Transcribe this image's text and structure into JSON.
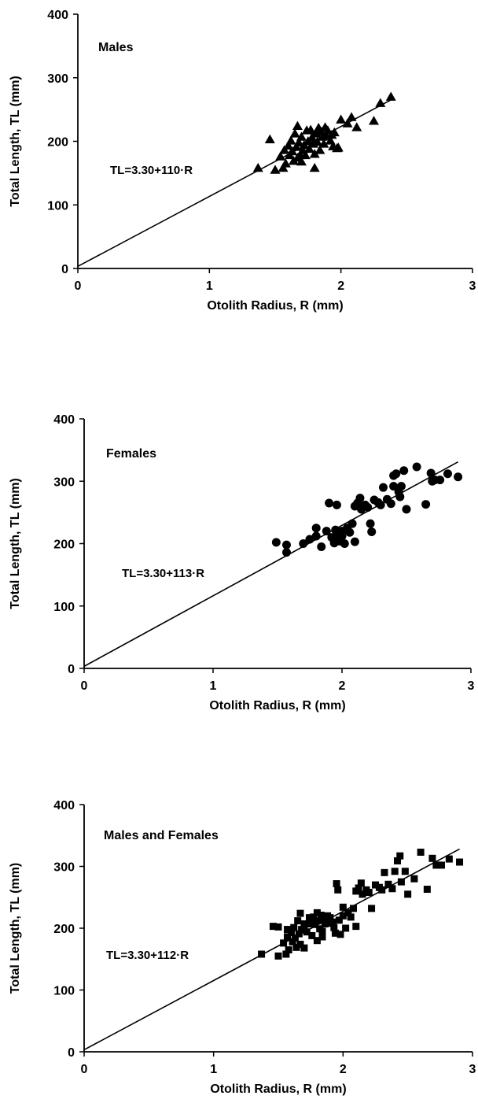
{
  "chart_data": [
    {
      "type": "scatter",
      "panel_label": "Males",
      "xlabel": "Otolith Radius, R (mm)",
      "ylabel": "Total Length, TL (mm)",
      "xlim": [
        0,
        3
      ],
      "ylim": [
        0,
        400
      ],
      "xticks": [
        "0",
        "1",
        "2",
        "3"
      ],
      "yticks": [
        "0",
        "100",
        "200",
        "300",
        "400"
      ],
      "equation": "TL=3.30+110·R",
      "marker": "triangle",
      "fit": {
        "intercept": 3.3,
        "slope": 110,
        "x_range": [
          0,
          2.4
        ]
      },
      "points": [
        [
          1.37,
          158
        ],
        [
          1.46,
          203
        ],
        [
          1.5,
          155
        ],
        [
          1.54,
          176
        ],
        [
          1.56,
          158
        ],
        [
          1.57,
          186
        ],
        [
          1.58,
          165
        ],
        [
          1.6,
          193
        ],
        [
          1.61,
          178
        ],
        [
          1.62,
          201
        ],
        [
          1.63,
          184
        ],
        [
          1.64,
          169
        ],
        [
          1.65,
          212
        ],
        [
          1.66,
          191
        ],
        [
          1.67,
          224
        ],
        [
          1.67,
          174
        ],
        [
          1.68,
          198
        ],
        [
          1.69,
          178
        ],
        [
          1.7,
          207
        ],
        [
          1.7,
          168
        ],
        [
          1.71,
          186
        ],
        [
          1.72,
          194
        ],
        [
          1.73,
          178
        ],
        [
          1.74,
          217
        ],
        [
          1.75,
          200
        ],
        [
          1.76,
          188
        ],
        [
          1.77,
          218
        ],
        [
          1.78,
          206
        ],
        [
          1.79,
          196
        ],
        [
          1.8,
          180
        ],
        [
          1.8,
          158
        ],
        [
          1.81,
          212
        ],
        [
          1.82,
          199
        ],
        [
          1.83,
          221
        ],
        [
          1.84,
          186
        ],
        [
          1.85,
          215
        ],
        [
          1.86,
          207
        ],
        [
          1.87,
          196
        ],
        [
          1.88,
          222
        ],
        [
          1.89,
          208
        ],
        [
          1.9,
          217
        ],
        [
          1.92,
          201
        ],
        [
          1.93,
          210
        ],
        [
          1.94,
          192
        ],
        [
          1.95,
          214
        ],
        [
          1.97,
          189
        ],
        [
          1.98,
          190
        ],
        [
          2.0,
          234
        ],
        [
          2.05,
          228
        ],
        [
          2.08,
          238
        ],
        [
          2.12,
          222
        ],
        [
          2.25,
          232
        ],
        [
          2.3,
          260
        ],
        [
          2.38,
          270
        ]
      ]
    },
    {
      "type": "scatter",
      "panel_label": "Females",
      "xlabel": "Otolith Radius, R (mm)",
      "ylabel": "Total Length, TL (mm)",
      "xlim": [
        0,
        3
      ],
      "ylim": [
        0,
        400
      ],
      "xticks": [
        "0",
        "1",
        "2",
        "3"
      ],
      "yticks": [
        "0",
        "100",
        "200",
        "300",
        "400"
      ],
      "equation": "TL=3.30+113·R",
      "marker": "circle",
      "fit": {
        "intercept": 3.3,
        "slope": 113,
        "x_range": [
          0,
          2.9
        ]
      },
      "points": [
        [
          1.49,
          202
        ],
        [
          1.57,
          198
        ],
        [
          1.57,
          186
        ],
        [
          1.7,
          200
        ],
        [
          1.75,
          207
        ],
        [
          1.8,
          212
        ],
        [
          1.8,
          225
        ],
        [
          1.84,
          195
        ],
        [
          1.88,
          220
        ],
        [
          1.9,
          265
        ],
        [
          1.92,
          210
        ],
        [
          1.94,
          201
        ],
        [
          1.95,
          222
        ],
        [
          1.96,
          262
        ],
        [
          1.97,
          213
        ],
        [
          1.98,
          204
        ],
        [
          2.0,
          220
        ],
        [
          2.0,
          212
        ],
        [
          2.02,
          200
        ],
        [
          2.04,
          225
        ],
        [
          2.06,
          218
        ],
        [
          2.08,
          232
        ],
        [
          2.1,
          203
        ],
        [
          2.1,
          260
        ],
        [
          2.12,
          265
        ],
        [
          2.14,
          273
        ],
        [
          2.15,
          255
        ],
        [
          2.18,
          262
        ],
        [
          2.2,
          258
        ],
        [
          2.22,
          232
        ],
        [
          2.23,
          219
        ],
        [
          2.25,
          270
        ],
        [
          2.28,
          266
        ],
        [
          2.3,
          262
        ],
        [
          2.32,
          290
        ],
        [
          2.35,
          271
        ],
        [
          2.38,
          264
        ],
        [
          2.4,
          292
        ],
        [
          2.4,
          309
        ],
        [
          2.42,
          312
        ],
        [
          2.44,
          283
        ],
        [
          2.45,
          275
        ],
        [
          2.46,
          292
        ],
        [
          2.48,
          317
        ],
        [
          2.5,
          255
        ],
        [
          2.58,
          323
        ],
        [
          2.65,
          263
        ],
        [
          2.69,
          313
        ],
        [
          2.7,
          300
        ],
        [
          2.72,
          302
        ],
        [
          2.76,
          302
        ],
        [
          2.82,
          312
        ],
        [
          2.9,
          307
        ]
      ]
    },
    {
      "type": "scatter",
      "panel_label": "Males and Females",
      "xlabel": "Otolith Radius, R (mm)",
      "ylabel": "Total Length, TL (mm)",
      "xlim": [
        0,
        3
      ],
      "ylim": [
        0,
        400
      ],
      "xticks": [
        "0",
        "1",
        "2",
        "3"
      ],
      "yticks": [
        "0",
        "100",
        "200",
        "300",
        "400"
      ],
      "equation": "TL=3.30+112·R",
      "marker": "square",
      "fit": {
        "intercept": 3.3,
        "slope": 112,
        "x_range": [
          0,
          2.9
        ]
      },
      "points": [
        [
          1.37,
          158
        ],
        [
          1.46,
          203
        ],
        [
          1.5,
          155
        ],
        [
          1.5,
          202
        ],
        [
          1.54,
          176
        ],
        [
          1.56,
          158
        ],
        [
          1.57,
          198
        ],
        [
          1.57,
          186
        ],
        [
          1.58,
          165
        ],
        [
          1.6,
          193
        ],
        [
          1.61,
          178
        ],
        [
          1.62,
          201
        ],
        [
          1.63,
          184
        ],
        [
          1.64,
          169
        ],
        [
          1.65,
          212
        ],
        [
          1.66,
          191
        ],
        [
          1.67,
          224
        ],
        [
          1.67,
          174
        ],
        [
          1.68,
          198
        ],
        [
          1.7,
          200
        ],
        [
          1.7,
          207
        ],
        [
          1.7,
          168
        ],
        [
          1.72,
          194
        ],
        [
          1.74,
          217
        ],
        [
          1.75,
          207
        ],
        [
          1.76,
          188
        ],
        [
          1.77,
          218
        ],
        [
          1.78,
          206
        ],
        [
          1.8,
          212
        ],
        [
          1.8,
          225
        ],
        [
          1.8,
          180
        ],
        [
          1.82,
          199
        ],
        [
          1.83,
          221
        ],
        [
          1.84,
          195
        ],
        [
          1.84,
          186
        ],
        [
          1.85,
          215
        ],
        [
          1.86,
          207
        ],
        [
          1.88,
          220
        ],
        [
          1.89,
          208
        ],
        [
          1.9,
          217
        ],
        [
          1.92,
          210
        ],
        [
          1.93,
          201
        ],
        [
          1.94,
          192
        ],
        [
          1.95,
          272
        ],
        [
          1.96,
          262
        ],
        [
          1.97,
          213
        ],
        [
          1.98,
          190
        ],
        [
          2.0,
          220
        ],
        [
          2.0,
          234
        ],
        [
          2.02,
          200
        ],
        [
          2.04,
          225
        ],
        [
          2.06,
          218
        ],
        [
          2.08,
          232
        ],
        [
          2.1,
          203
        ],
        [
          2.1,
          260
        ],
        [
          2.12,
          265
        ],
        [
          2.14,
          273
        ],
        [
          2.15,
          255
        ],
        [
          2.18,
          262
        ],
        [
          2.2,
          258
        ],
        [
          2.22,
          232
        ],
        [
          2.25,
          270
        ],
        [
          2.28,
          266
        ],
        [
          2.3,
          262
        ],
        [
          2.32,
          290
        ],
        [
          2.35,
          271
        ],
        [
          2.38,
          264
        ],
        [
          2.4,
          292
        ],
        [
          2.42,
          309
        ],
        [
          2.44,
          317
        ],
        [
          2.45,
          275
        ],
        [
          2.48,
          292
        ],
        [
          2.5,
          255
        ],
        [
          2.55,
          280
        ],
        [
          2.6,
          323
        ],
        [
          2.65,
          263
        ],
        [
          2.69,
          313
        ],
        [
          2.72,
          302
        ],
        [
          2.76,
          302
        ],
        [
          2.82,
          312
        ],
        [
          2.9,
          307
        ]
      ]
    }
  ]
}
